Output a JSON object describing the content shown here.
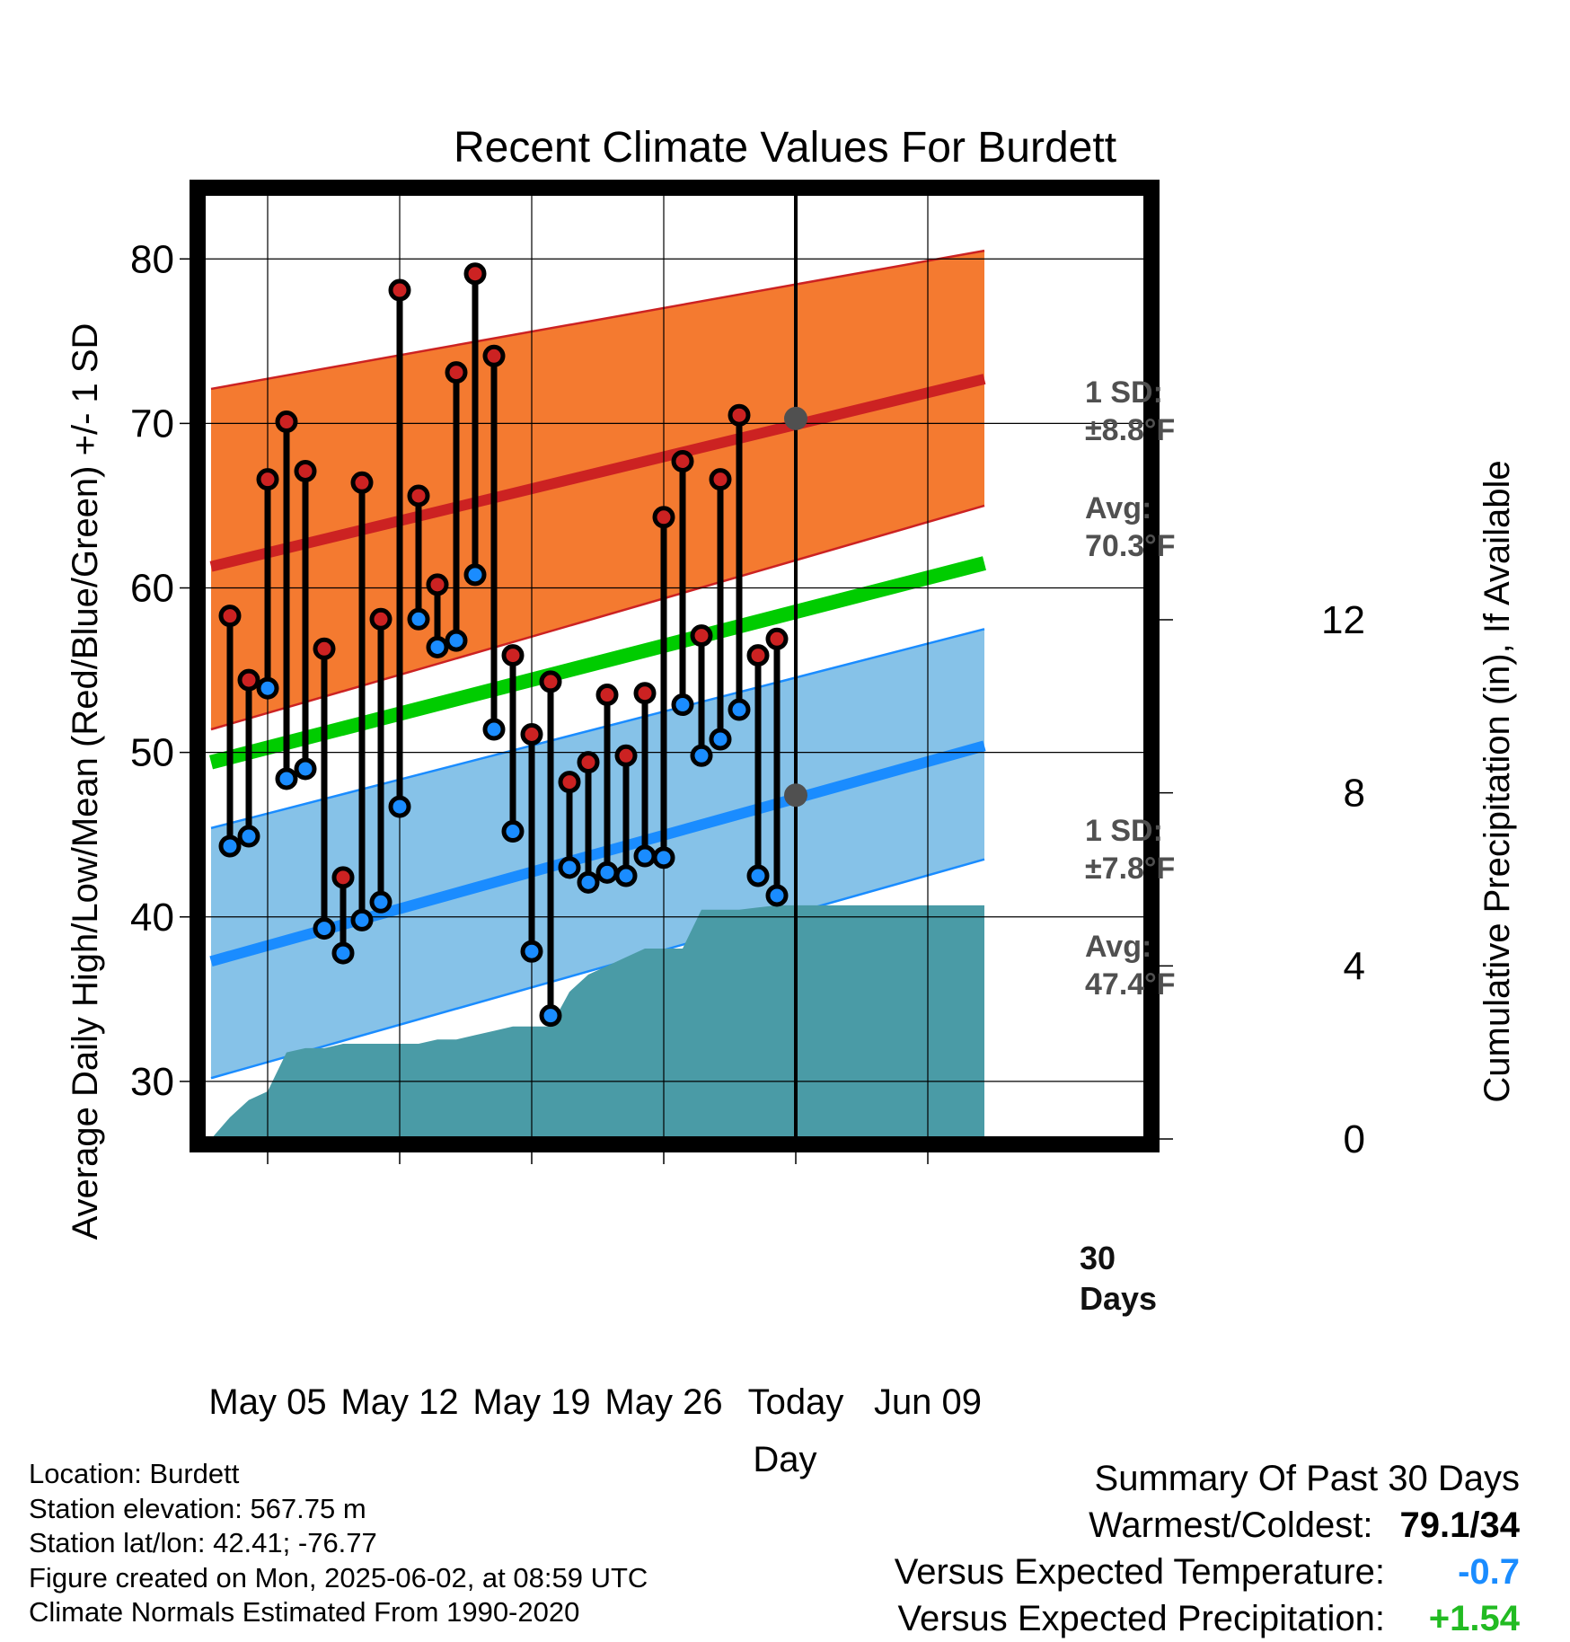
{
  "title": "Recent Climate Values For Burdett",
  "xlabel": "Day",
  "ylabel_left": "Average Daily High/Low/Mean (Red/Blue/Green) +/- 1 SD",
  "ylabel_right": "Cumulative Precipitation (in), If Available",
  "colors": {
    "high_band": "#f47a30",
    "high_line": "#cc2222",
    "low_band": "#86c2e8",
    "low_line": "#1a8cff",
    "mean_line": "#00cc00",
    "precip": "#4a9ba6",
    "high_dot": "#cc2222",
    "low_dot": "#1a8cff",
    "marker_gray": "#505050",
    "summary_cold": "#1a8cff",
    "summary_wet": "#22bb22"
  },
  "chart_data": {
    "type": "line",
    "x_dates": [
      "May 02",
      "May 03",
      "May 04",
      "May 05",
      "May 06",
      "May 07",
      "May 08",
      "May 09",
      "May 10",
      "May 11",
      "May 12",
      "May 13",
      "May 14",
      "May 15",
      "May 16",
      "May 17",
      "May 18",
      "May 19",
      "May 20",
      "May 21",
      "May 22",
      "May 23",
      "May 24",
      "May 25",
      "May 26",
      "May 27",
      "May 28",
      "May 29",
      "May 30",
      "May 31",
      "Jun 01",
      "Jun 02",
      "Jun 03",
      "Jun 04",
      "Jun 05",
      "Jun 06",
      "Jun 07",
      "Jun 08",
      "Jun 09",
      "Jun 10",
      "Jun 11",
      "Jun 12"
    ],
    "x_ticks": [
      {
        "date": "May 05",
        "label": "May 05"
      },
      {
        "date": "May 12",
        "label": "May 12"
      },
      {
        "date": "May 19",
        "label": "May 19"
      },
      {
        "date": "May 26",
        "label": "May 26"
      },
      {
        "date": "Jun 02",
        "label": "Today"
      },
      {
        "date": "Jun 09",
        "label": "Jun 09"
      }
    ],
    "today": "Jun 02",
    "today_label_line1": "30",
    "today_label_line2": "Days",
    "ylim_left": [
      26.5,
      84
    ],
    "yticks_left": [
      30,
      40,
      50,
      60,
      70,
      80
    ],
    "ylim_right": [
      0,
      21.86
    ],
    "yticks_right": [
      0,
      4,
      8,
      12
    ],
    "daily_obs": {
      "dates": [
        "May 03",
        "May 04",
        "May 05",
        "May 06",
        "May 07",
        "May 08",
        "May 09",
        "May 10",
        "May 11",
        "May 12",
        "May 13",
        "May 14",
        "May 15",
        "May 16",
        "May 17",
        "May 18",
        "May 19",
        "May 20",
        "May 21",
        "May 22",
        "May 23",
        "May 24",
        "May 25",
        "May 26",
        "May 27",
        "May 28",
        "May 29",
        "May 30",
        "May 31",
        "Jun 01"
      ],
      "high": [
        58.3,
        54.4,
        66.6,
        70.1,
        67.1,
        56.3,
        42.4,
        66.4,
        58.1,
        78.1,
        65.6,
        60.2,
        73.1,
        79.1,
        74.1,
        55.9,
        51.1,
        54.3,
        48.2,
        49.4,
        53.5,
        49.8,
        53.6,
        64.3,
        67.7,
        57.1,
        66.6,
        70.5,
        55.9,
        56.9
      ],
      "low": [
        44.3,
        44.9,
        53.9,
        48.4,
        49.0,
        39.3,
        37.8,
        39.8,
        40.9,
        46.7,
        58.1,
        56.4,
        56.8,
        60.8,
        51.4,
        45.2,
        37.9,
        34.0,
        43.0,
        42.1,
        42.7,
        42.5,
        43.7,
        43.6,
        52.9,
        49.8,
        50.8,
        52.6,
        42.5,
        41.3
      ]
    },
    "normal_high": {
      "x": [
        "May 02",
        "Jun 12"
      ],
      "avg": [
        61.3,
        72.7
      ],
      "sd_upper": [
        72.1,
        80.5
      ],
      "sd_lower": [
        51.4,
        65.0
      ]
    },
    "normal_low": {
      "x": [
        "May 02",
        "Jun 12"
      ],
      "avg": [
        37.3,
        50.4
      ],
      "sd_upper": [
        45.4,
        57.5
      ],
      "sd_lower": [
        30.2,
        43.5
      ]
    },
    "normal_mean": {
      "x": [
        "May 02",
        "Jun 12"
      ],
      "values": [
        49.4,
        61.5
      ]
    },
    "precip_cumulative": {
      "dates": [
        "May 02",
        "May 03",
        "May 04",
        "May 05",
        "May 06",
        "May 07",
        "May 08",
        "May 09",
        "May 10",
        "May 11",
        "May 12",
        "May 13",
        "May 14",
        "May 15",
        "May 16",
        "May 17",
        "May 18",
        "May 19",
        "May 20",
        "May 21",
        "May 22",
        "May 23",
        "May 24",
        "May 25",
        "May 26",
        "May 27",
        "May 28",
        "May 29",
        "May 30",
        "May 31",
        "Jun 01",
        "Jun 02",
        "Jun 12"
      ],
      "values": [
        0.0,
        0.5,
        0.9,
        1.1,
        2.0,
        2.1,
        2.1,
        2.2,
        2.2,
        2.2,
        2.2,
        2.2,
        2.3,
        2.3,
        2.4,
        2.5,
        2.6,
        2.6,
        2.6,
        3.4,
        3.8,
        4.0,
        4.2,
        4.4,
        4.4,
        4.4,
        5.3,
        5.3,
        5.3,
        5.35,
        5.4,
        5.4,
        5.4
      ]
    },
    "annotations": {
      "high_sd_line1": "1 SD:",
      "high_sd_line2": "±8.8°F",
      "high_avg_line1": "Avg:",
      "high_avg_line2": "70.3°F",
      "low_sd_line1": "1 SD:",
      "low_sd_line2": "±7.8°F",
      "low_avg_line1": "Avg:",
      "low_avg_line2": "47.4°F",
      "today_high_avg": 70.3,
      "today_low_avg": 47.4
    }
  },
  "footer": {
    "location": "Location: Burdett",
    "elevation": "Station elevation: 567.75 m",
    "latlon": "Station lat/lon: 42.41; -76.77",
    "created": "Figure created on Mon, 2025-06-02, at 08:59 UTC",
    "normals": "Climate Normals Estimated From 1990-2020"
  },
  "summary": {
    "heading": "Summary Of Past 30 Days",
    "warm_cold_label": "Warmest/Coldest:",
    "warm_cold_value": "79.1/34",
    "temp_label": "Versus Expected Temperature:",
    "temp_value": "-0.7",
    "precip_label": "Versus Expected Precipitation:",
    "precip_value": "+1.54"
  }
}
